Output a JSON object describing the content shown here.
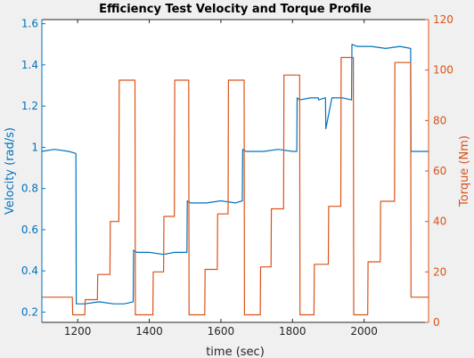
{
  "chart_data": {
    "type": "line",
    "title": "Efficiency Test Velocity and Torque Profile",
    "xlabel": "time (sec)",
    "xlim": [
      1100,
      2180
    ],
    "x_ticks": [
      1200,
      1400,
      1600,
      1800,
      2000
    ],
    "left_axis": {
      "label": "Velocity (rad/s)",
      "color": "#0072BD",
      "ylim": [
        0.15,
        1.62
      ],
      "ticks": [
        0.2,
        0.4,
        0.6,
        0.8,
        1,
        1.2,
        1.4,
        1.6
      ],
      "tick_labels": [
        "0.2",
        "0.4",
        "0.6",
        "0.8",
        "1",
        "1.2",
        "1.4",
        "1.6"
      ]
    },
    "right_axis": {
      "label": "Torque (Nm)",
      "color": "#D95319",
      "ylim": [
        0,
        120
      ],
      "ticks": [
        0,
        20,
        40,
        60,
        80,
        100,
        120
      ],
      "tick_labels": [
        "0",
        "20",
        "40",
        "60",
        "80",
        "100",
        "120"
      ]
    },
    "grid": false,
    "series": [
      {
        "axis": "left",
        "color": "#0072BD",
        "x": [
          1100,
          1135,
          1175,
          1195,
          1196,
          1220,
          1260,
          1300,
          1330,
          1355,
          1356,
          1365,
          1400,
          1440,
          1470,
          1505,
          1506,
          1515,
          1560,
          1600,
          1640,
          1660,
          1661,
          1670,
          1720,
          1760,
          1800,
          1812,
          1813,
          1820,
          1850,
          1872,
          1873,
          1890,
          1892,
          1893,
          1910,
          1940,
          1965,
          1966,
          1980,
          2020,
          2060,
          2100,
          2130,
          2131,
          2140,
          2180
        ],
        "y": [
          0.98,
          0.99,
          0.98,
          0.97,
          0.24,
          0.24,
          0.25,
          0.24,
          0.24,
          0.25,
          0.5,
          0.49,
          0.49,
          0.48,
          0.49,
          0.49,
          0.74,
          0.73,
          0.73,
          0.74,
          0.73,
          0.74,
          0.99,
          0.98,
          0.98,
          0.99,
          0.98,
          0.98,
          1.24,
          1.23,
          1.24,
          1.24,
          1.23,
          1.24,
          1.24,
          1.09,
          1.24,
          1.24,
          1.23,
          1.5,
          1.49,
          1.49,
          1.48,
          1.49,
          1.48,
          0.98,
          0.98,
          0.98
        ]
      },
      {
        "axis": "right",
        "color": "#D95319",
        "x": [
          1100,
          1185,
          1186,
          1220,
          1221,
          1255,
          1256,
          1290,
          1291,
          1315,
          1316,
          1360,
          1361,
          1410,
          1411,
          1440,
          1441,
          1470,
          1471,
          1510,
          1511,
          1555,
          1556,
          1590,
          1591,
          1620,
          1621,
          1665,
          1666,
          1710,
          1711,
          1740,
          1741,
          1775,
          1776,
          1820,
          1821,
          1860,
          1861,
          1900,
          1901,
          1935,
          1936,
          1970,
          1971,
          2010,
          2011,
          2045,
          2046,
          2085,
          2086,
          2130,
          2131,
          2180
        ],
        "y": [
          10,
          10,
          3,
          3,
          9,
          9,
          19,
          19,
          40,
          40,
          96,
          96,
          3,
          3,
          20,
          20,
          42,
          42,
          96,
          96,
          3,
          3,
          21,
          21,
          43,
          43,
          96,
          96,
          3,
          3,
          22,
          22,
          45,
          45,
          98,
          98,
          3,
          3,
          23,
          23,
          46,
          46,
          105,
          105,
          3,
          3,
          24,
          24,
          48,
          48,
          103,
          103,
          10,
          10
        ]
      }
    ]
  }
}
